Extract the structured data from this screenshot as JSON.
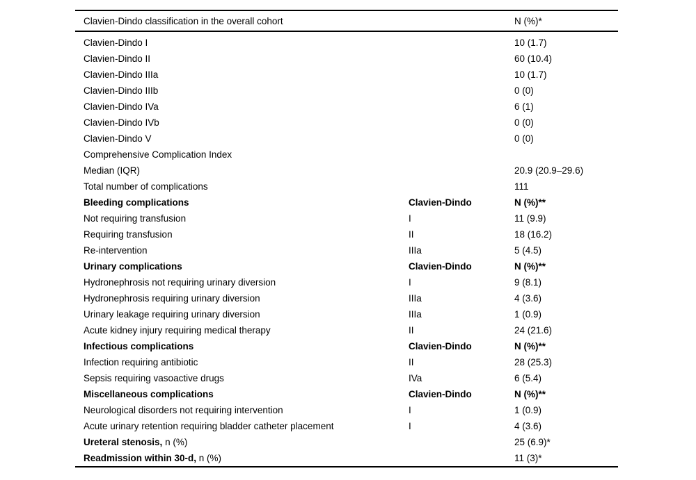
{
  "colors": {
    "background": "#ffffff",
    "text": "#000000",
    "rule": "#000000"
  },
  "table": {
    "header": {
      "col1": "Clavien-Dindo classification in the overall cohort",
      "col2": "",
      "col3": "N (%)*"
    },
    "rows": [
      {
        "type": "normal",
        "label": "Clavien-Dindo I",
        "label_suffix": "",
        "grade": "",
        "value": "10 (1.7)"
      },
      {
        "type": "normal",
        "label": "Clavien-Dindo II",
        "label_suffix": "",
        "grade": "",
        "value": "60 (10.4)"
      },
      {
        "type": "normal",
        "label": "Clavien-Dindo IIIa",
        "label_suffix": "",
        "grade": "",
        "value": "10 (1.7)"
      },
      {
        "type": "normal",
        "label": "Clavien-Dindo IIIb",
        "label_suffix": "",
        "grade": "",
        "value": "0 (0)"
      },
      {
        "type": "normal",
        "label": "Clavien-Dindo IVa",
        "label_suffix": "",
        "grade": "",
        "value": "6 (1)"
      },
      {
        "type": "normal",
        "label": "Clavien-Dindo IVb",
        "label_suffix": "",
        "grade": "",
        "value": "0 (0)"
      },
      {
        "type": "normal",
        "label": "Clavien-Dindo V",
        "label_suffix": "",
        "grade": "",
        "value": "0 (0)"
      },
      {
        "type": "normal",
        "label": "Comprehensive Complication Index",
        "label_suffix": "",
        "grade": "",
        "value": ""
      },
      {
        "type": "normal",
        "label": "Median (IQR)",
        "label_suffix": "",
        "grade": "",
        "value": "20.9 (20.9–29.6)"
      },
      {
        "type": "normal",
        "label": "Total number of complications",
        "label_suffix": "",
        "grade": "",
        "value": "111"
      },
      {
        "type": "section",
        "label": "Bleeding complications",
        "label_suffix": "",
        "grade": "Clavien-Dindo",
        "value": "N (%)**"
      },
      {
        "type": "normal",
        "label": "Not requiring transfusion",
        "label_suffix": "",
        "grade": "I",
        "value": "11 (9.9)"
      },
      {
        "type": "normal",
        "label": "Requiring transfusion",
        "label_suffix": "",
        "grade": "II",
        "value": "18 (16.2)"
      },
      {
        "type": "normal",
        "label": "Re-intervention",
        "label_suffix": "",
        "grade": "IIIa",
        "value": "5 (4.5)"
      },
      {
        "type": "section",
        "label": "Urinary complications",
        "label_suffix": "",
        "grade": "Clavien-Dindo",
        "value": "N (%)**"
      },
      {
        "type": "normal",
        "label": "Hydronephrosis not requiring urinary diversion",
        "label_suffix": "",
        "grade": "I",
        "value": "9 (8.1)"
      },
      {
        "type": "normal",
        "label": "Hydronephrosis requiring urinary diversion",
        "label_suffix": "",
        "grade": "IIIa",
        "value": "4 (3.6)"
      },
      {
        "type": "normal",
        "label": "Urinary leakage requiring urinary diversion",
        "label_suffix": "",
        "grade": "IIIa",
        "value": "1 (0.9)"
      },
      {
        "type": "normal",
        "label": "Acute kidney injury requiring medical therapy",
        "label_suffix": "",
        "grade": "II",
        "value": "24 (21.6)"
      },
      {
        "type": "section",
        "label": "Infectious complications",
        "label_suffix": "",
        "grade": "Clavien-Dindo",
        "value": "N (%)**"
      },
      {
        "type": "normal",
        "label": "Infection requiring antibiotic",
        "label_suffix": "",
        "grade": "II",
        "value": "28 (25.3)"
      },
      {
        "type": "normal",
        "label": "Sepsis requiring vasoactive drugs",
        "label_suffix": "",
        "grade": "IVa",
        "value": "6 (5.4)"
      },
      {
        "type": "section",
        "label": "Miscellaneous complications",
        "label_suffix": "",
        "grade": "Clavien-Dindo",
        "value": "N (%)**"
      },
      {
        "type": "normal",
        "label": "Neurological disorders not requiring intervention",
        "label_suffix": "",
        "grade": "I",
        "value": "1 (0.9)"
      },
      {
        "type": "normal",
        "label": "Acute urinary retention requiring bladder catheter placement",
        "label_suffix": "",
        "grade": "I",
        "value": "4 (3.6)"
      },
      {
        "type": "leadbold",
        "label": "Ureteral stenosis,",
        "label_suffix": " n (%)",
        "grade": "",
        "value": "25 (6.9)*"
      },
      {
        "type": "leadbold",
        "label": "Readmission within 30-d,",
        "label_suffix": " n (%)",
        "grade": "",
        "value": "11 (3)*"
      }
    ]
  }
}
